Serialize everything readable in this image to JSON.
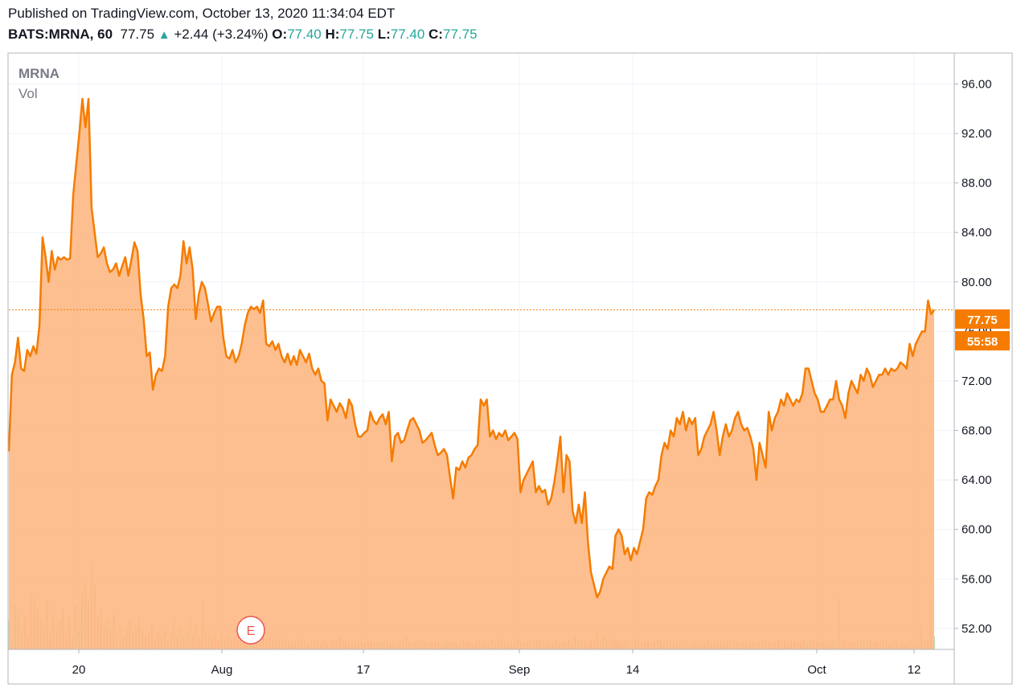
{
  "header": {
    "published": "Published on TradingView.com, October 13, 2020 11:34:04 EDT",
    "symbol": "BATS:MRNA, 60",
    "last": "77.75",
    "change": "+2.44 (+3.24%)",
    "open_label": "O:",
    "open": "77.40",
    "high_label": "H:",
    "high": "77.75",
    "low_label": "L:",
    "low": "77.40",
    "close_label": "C:",
    "close": "77.75"
  },
  "legend": {
    "symbol": "MRNA",
    "vol": "Vol"
  },
  "colors": {
    "line": "#f57c00",
    "area": "#fdb67f",
    "badge": "#f57c00",
    "up": "#26a69a",
    "grid": "#f0f3fa",
    "vol_up": "#a5d6a7",
    "vol_down": "#ef9a9a"
  },
  "badges": {
    "price": "77.75",
    "countdown": "55:58"
  },
  "event_marker": {
    "label": "E"
  },
  "chart_data": {
    "type": "area",
    "ylim": [
      50.3,
      98.5
    ],
    "y_ticks": [
      "96.00",
      "92.00",
      "88.00",
      "84.00",
      "80.00",
      "76.00",
      "72.00",
      "68.00",
      "64.00",
      "60.00",
      "56.00",
      "52.00"
    ],
    "x_ticks": [
      "20",
      "Aug",
      "17",
      "Sep",
      "14",
      "Oct",
      "12"
    ],
    "series": [
      {
        "values": [
          66.3,
          72.5,
          73.5,
          75.5,
          73.0,
          72.8,
          74.5,
          74.0,
          74.8,
          74.2,
          76.5,
          83.6,
          82.0,
          80.0,
          82.5,
          81.0,
          82.0,
          81.8,
          82.0,
          81.8,
          81.9,
          87.0,
          89.5,
          92.0,
          94.8,
          92.5,
          94.8,
          86.0,
          84.0,
          82.0,
          82.3,
          82.8,
          81.5,
          80.8,
          81.0,
          81.5,
          80.5,
          81.3,
          82.0,
          80.5,
          81.8,
          83.2,
          82.5,
          79.0,
          77.0,
          74.0,
          74.3,
          71.3,
          72.5,
          73.0,
          72.8,
          74.0,
          78.0,
          79.5,
          79.8,
          79.5,
          80.5,
          83.3,
          81.5,
          82.8,
          81.0,
          77.0,
          79.0,
          80.0,
          79.5,
          78.2,
          76.8,
          77.5,
          78.0,
          78.0,
          75.5,
          74.0,
          73.8,
          74.5,
          73.5,
          74.0,
          75.0,
          76.5,
          77.5,
          78.0,
          77.8,
          78.0,
          77.5,
          78.5,
          75.0,
          74.8,
          75.2,
          74.5,
          75.0,
          74.0,
          73.5,
          74.2,
          73.3,
          74.0,
          73.3,
          74.5,
          74.0,
          73.5,
          74.2,
          73.0,
          72.5,
          73.0,
          72.0,
          71.8,
          68.8,
          70.5,
          70.0,
          69.5,
          70.2,
          69.8,
          69.0,
          70.5,
          70.0,
          68.5,
          67.5,
          67.5,
          67.8,
          68.0,
          69.5,
          68.8,
          68.5,
          69.0,
          69.3,
          68.5,
          69.5,
          65.5,
          67.5,
          67.8,
          67.0,
          67.2,
          68.0,
          68.8,
          69.0,
          68.5,
          68.0,
          67.0,
          67.2,
          67.5,
          67.8,
          66.8,
          66.0,
          66.2,
          66.5,
          66.0,
          64.2,
          62.5,
          65.0,
          64.8,
          65.5,
          65.0,
          65.8,
          66.0,
          66.5,
          66.8,
          70.5,
          70.0,
          70.5,
          67.5,
          68.0,
          67.3,
          67.8,
          67.5,
          68.0,
          67.2,
          67.5,
          67.8,
          67.3,
          63.0,
          64.0,
          64.5,
          65.0,
          65.5,
          63.0,
          63.5,
          63.0,
          63.2,
          62.0,
          62.5,
          63.8,
          65.5,
          67.5,
          63.0,
          66.0,
          65.5,
          61.5,
          60.5,
          62.0,
          60.5,
          63.0,
          59.0,
          56.5,
          55.5,
          54.5,
          55.0,
          56.0,
          56.5,
          57.0,
          56.8,
          59.5,
          60.0,
          59.5,
          58.0,
          58.5,
          57.5,
          58.5,
          58.0,
          59.0,
          60.0,
          62.5,
          63.0,
          62.8,
          63.5,
          64.0,
          66.0,
          67.0,
          66.5,
          68.0,
          67.5,
          69.0,
          68.5,
          69.5,
          68.0,
          69.0,
          68.5,
          69.0,
          66.0,
          66.5,
          67.5,
          68.0,
          68.5,
          69.5,
          68.0,
          66.0,
          67.5,
          68.5,
          67.5,
          68.0,
          69.0,
          69.5,
          68.5,
          68.0,
          68.2,
          67.5,
          66.5,
          64.0,
          67.0,
          66.0,
          65.0,
          69.5,
          68.0,
          69.0,
          69.5,
          70.5,
          70.0,
          71.0,
          70.5,
          70.0,
          70.5,
          70.3,
          71.0,
          73.0,
          73.0,
          72.0,
          71.0,
          70.5,
          69.5,
          69.5,
          70.0,
          70.5,
          70.5,
          72.0,
          70.5,
          70.0,
          69.0,
          71.0,
          72.0,
          71.5,
          71.0,
          72.5,
          72.0,
          73.0,
          72.5,
          71.5,
          72.0,
          72.5,
          72.5,
          73.0,
          72.5,
          73.0,
          72.8,
          73.0,
          73.5,
          73.3,
          73.0,
          75.0,
          74.0,
          75.0,
          75.5,
          76.0,
          76.0,
          78.5,
          77.4,
          77.75
        ]
      }
    ],
    "volume_relative": [
      0.18,
      0.05,
      0.28,
      0.22,
      0.12,
      0.2,
      0.08,
      0.35,
      0.3,
      0.25,
      0.18,
      0.15,
      0.3,
      0.1,
      0.22,
      0.12,
      0.18,
      0.25,
      0.1,
      0.2,
      0.08,
      0.28,
      0.12,
      0.35,
      0.42,
      0.3,
      0.55,
      0.4,
      0.2,
      0.25,
      0.15,
      0.18,
      0.12,
      0.22,
      0.1,
      0.15,
      0.08,
      0.12,
      0.18,
      0.1,
      0.14,
      0.2,
      0.12,
      0.08,
      0.1,
      0.15,
      0.06,
      0.1,
      0.08,
      0.12,
      0.05,
      0.09,
      0.18,
      0.1,
      0.14,
      0.08,
      0.12,
      0.2,
      0.1,
      0.16,
      0.08,
      0.3,
      0.1,
      0.12,
      0.08,
      0.1,
      0.06,
      0.09,
      0.07,
      0.1,
      0.05,
      0.08,
      0.06,
      0.09,
      0.05,
      0.07,
      0.06,
      0.08,
      0.12,
      0.07,
      0.1,
      0.06,
      0.08,
      0.07,
      0.05,
      0.06,
      0.07,
      0.05,
      0.06,
      0.04,
      0.05,
      0.07,
      0.05,
      0.06,
      0.04,
      0.05,
      0.06,
      0.05,
      0.04,
      0.06,
      0.05,
      0.04,
      0.06,
      0.05,
      0.08,
      0.05,
      0.06,
      0.04,
      0.05,
      0.06,
      0.04,
      0.05,
      0.04,
      0.06,
      0.05,
      0.04,
      0.05,
      0.04,
      0.06,
      0.05,
      0.04,
      0.05,
      0.04,
      0.06,
      0.05,
      0.08,
      0.05,
      0.04,
      0.05,
      0.04,
      0.06,
      0.05,
      0.04,
      0.05,
      0.04,
      0.05,
      0.04,
      0.06,
      0.05,
      0.04,
      0.05,
      0.04,
      0.05,
      0.06,
      0.04,
      0.05,
      0.04,
      0.05,
      0.06,
      0.05,
      0.04,
      0.05,
      0.06,
      0.04,
      0.08,
      0.05,
      0.06,
      0.04,
      0.05,
      0.04,
      0.06,
      0.05,
      0.04,
      0.05,
      0.06,
      0.04,
      0.05,
      0.06,
      0.05,
      0.04,
      0.05,
      0.04,
      0.06,
      0.05,
      0.04,
      0.05,
      0.06,
      0.04,
      0.08,
      0.05,
      0.06,
      0.05,
      0.04,
      0.06,
      0.05,
      0.1,
      0.06,
      0.08,
      0.06,
      0.05,
      0.07,
      0.06,
      0.05,
      0.04,
      0.06,
      0.05,
      0.04,
      0.06,
      0.05,
      0.04,
      0.05,
      0.06,
      0.04,
      0.05,
      0.06,
      0.05,
      0.04,
      0.06,
      0.05,
      0.04,
      0.05,
      0.06,
      0.04,
      0.05,
      0.04,
      0.05,
      0.06,
      0.04,
      0.05,
      0.04,
      0.06,
      0.05,
      0.04,
      0.05,
      0.06,
      0.04,
      0.05,
      0.04,
      0.06,
      0.05,
      0.04,
      0.05,
      0.04,
      0.06,
      0.05,
      0.04,
      0.05,
      0.06,
      0.04,
      0.05,
      0.04,
      0.05,
      0.06,
      0.04,
      0.05,
      0.04,
      0.06,
      0.05,
      0.04,
      0.05,
      0.06,
      0.04,
      0.05,
      0.06,
      0.05,
      0.04,
      0.05,
      0.06,
      0.04,
      0.05,
      0.04,
      0.32,
      0.06,
      0.05,
      0.04,
      0.05,
      0.04,
      0.06,
      0.05,
      0.04,
      0.05,
      0.06,
      0.04,
      0.05,
      0.04,
      0.06,
      0.05,
      0.04,
      0.05,
      0.06,
      0.04,
      0.05,
      0.04,
      0.06,
      0.05,
      0.04,
      0.05,
      0.15,
      0.06,
      0.05,
      0.3,
      0.08
    ]
  }
}
